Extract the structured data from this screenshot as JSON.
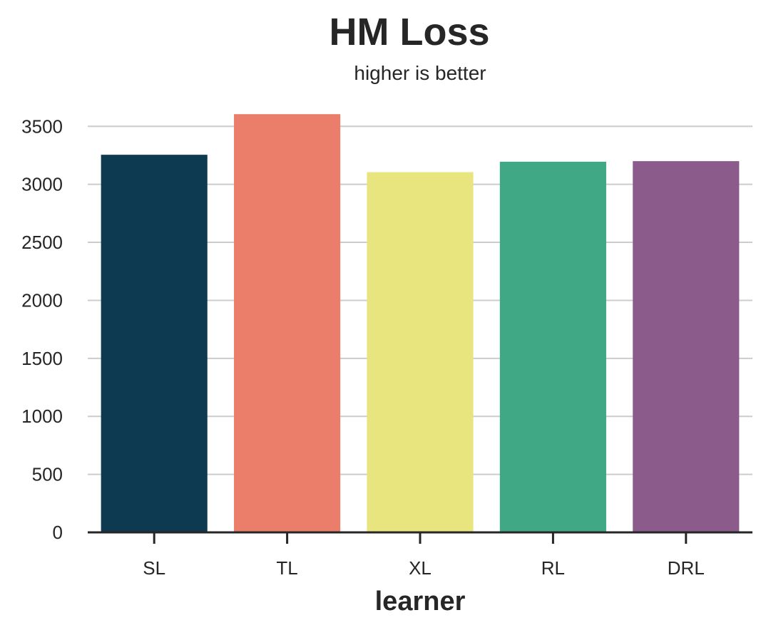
{
  "chart_data": {
    "type": "bar",
    "title": "HM Loss",
    "subtitle": "higher is better",
    "xlabel": "learner",
    "ylabel": "",
    "categories": [
      "SL",
      "TL",
      "XL",
      "RL",
      "DRL"
    ],
    "values": [
      3255,
      3605,
      3105,
      3195,
      3200
    ],
    "colors": [
      "#0e3a51",
      "#ea7e6b",
      "#e8e57f",
      "#41a886",
      "#8b5b8b"
    ],
    "ylim": [
      0,
      3600
    ],
    "yticks": [
      "0",
      "500",
      "1000",
      "1500",
      "2000",
      "2500",
      "3000",
      "3500"
    ],
    "grid": "horizontal"
  }
}
